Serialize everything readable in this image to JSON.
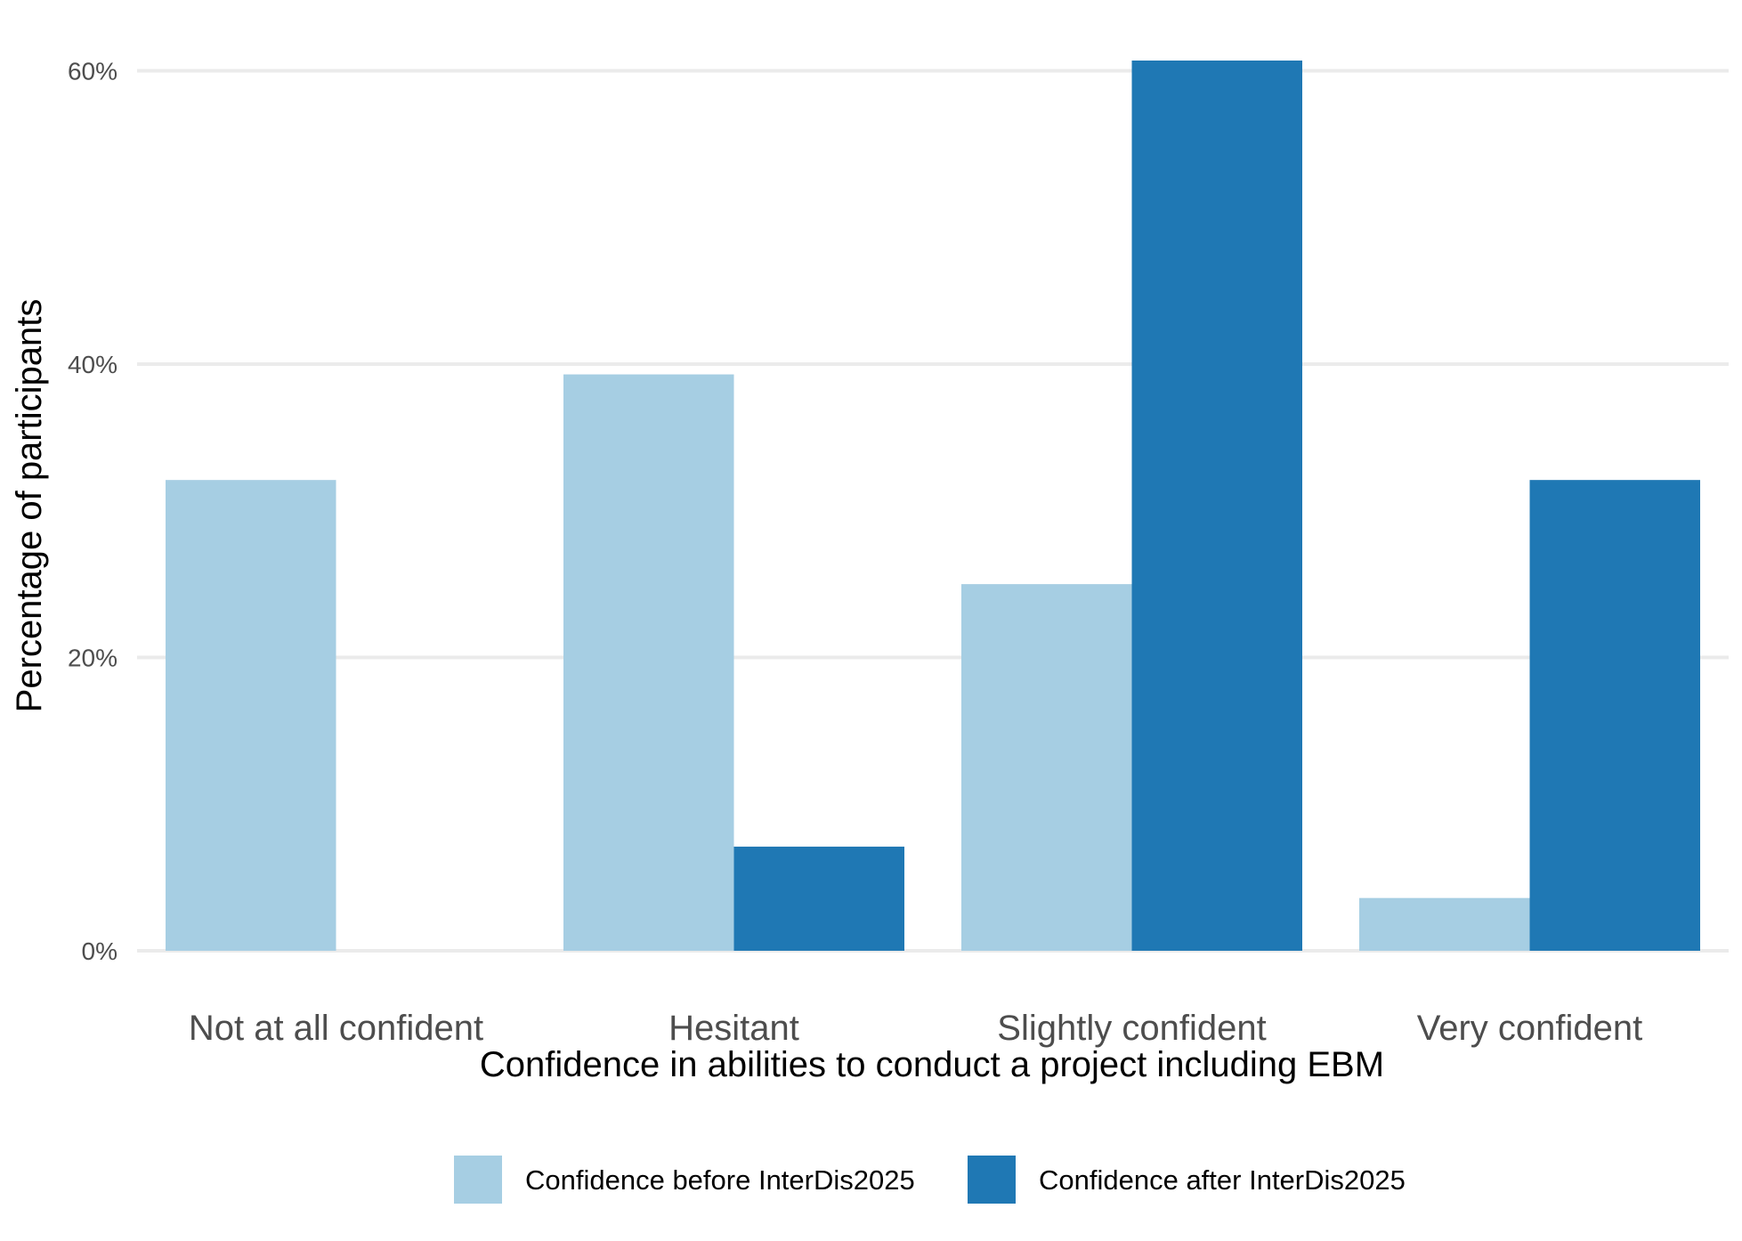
{
  "chart_data": {
    "type": "bar",
    "xlabel": "Confidence in abilities to conduct a project including EBM",
    "ylabel": "Percentage of participants",
    "categories": [
      "Not at all confident",
      "Hesitant",
      "Slightly confident",
      "Very confident"
    ],
    "series": [
      {
        "name": "Confidence before InterDis2025",
        "color": "#a6cee3",
        "values": [
          32.1,
          39.3,
          25.0,
          3.6
        ]
      },
      {
        "name": "Confidence after InterDis2025",
        "color": "#1f78b4",
        "values": [
          0.0,
          7.1,
          60.7,
          32.1
        ]
      }
    ],
    "ylim": [
      0,
      60.7
    ],
    "yticks": [
      {
        "value": 0,
        "label": "0%"
      },
      {
        "value": 20,
        "label": "20%"
      },
      {
        "value": 40,
        "label": "40%"
      },
      {
        "value": 60,
        "label": "60%"
      }
    ],
    "grid": true,
    "legend_position": "bottom"
  }
}
